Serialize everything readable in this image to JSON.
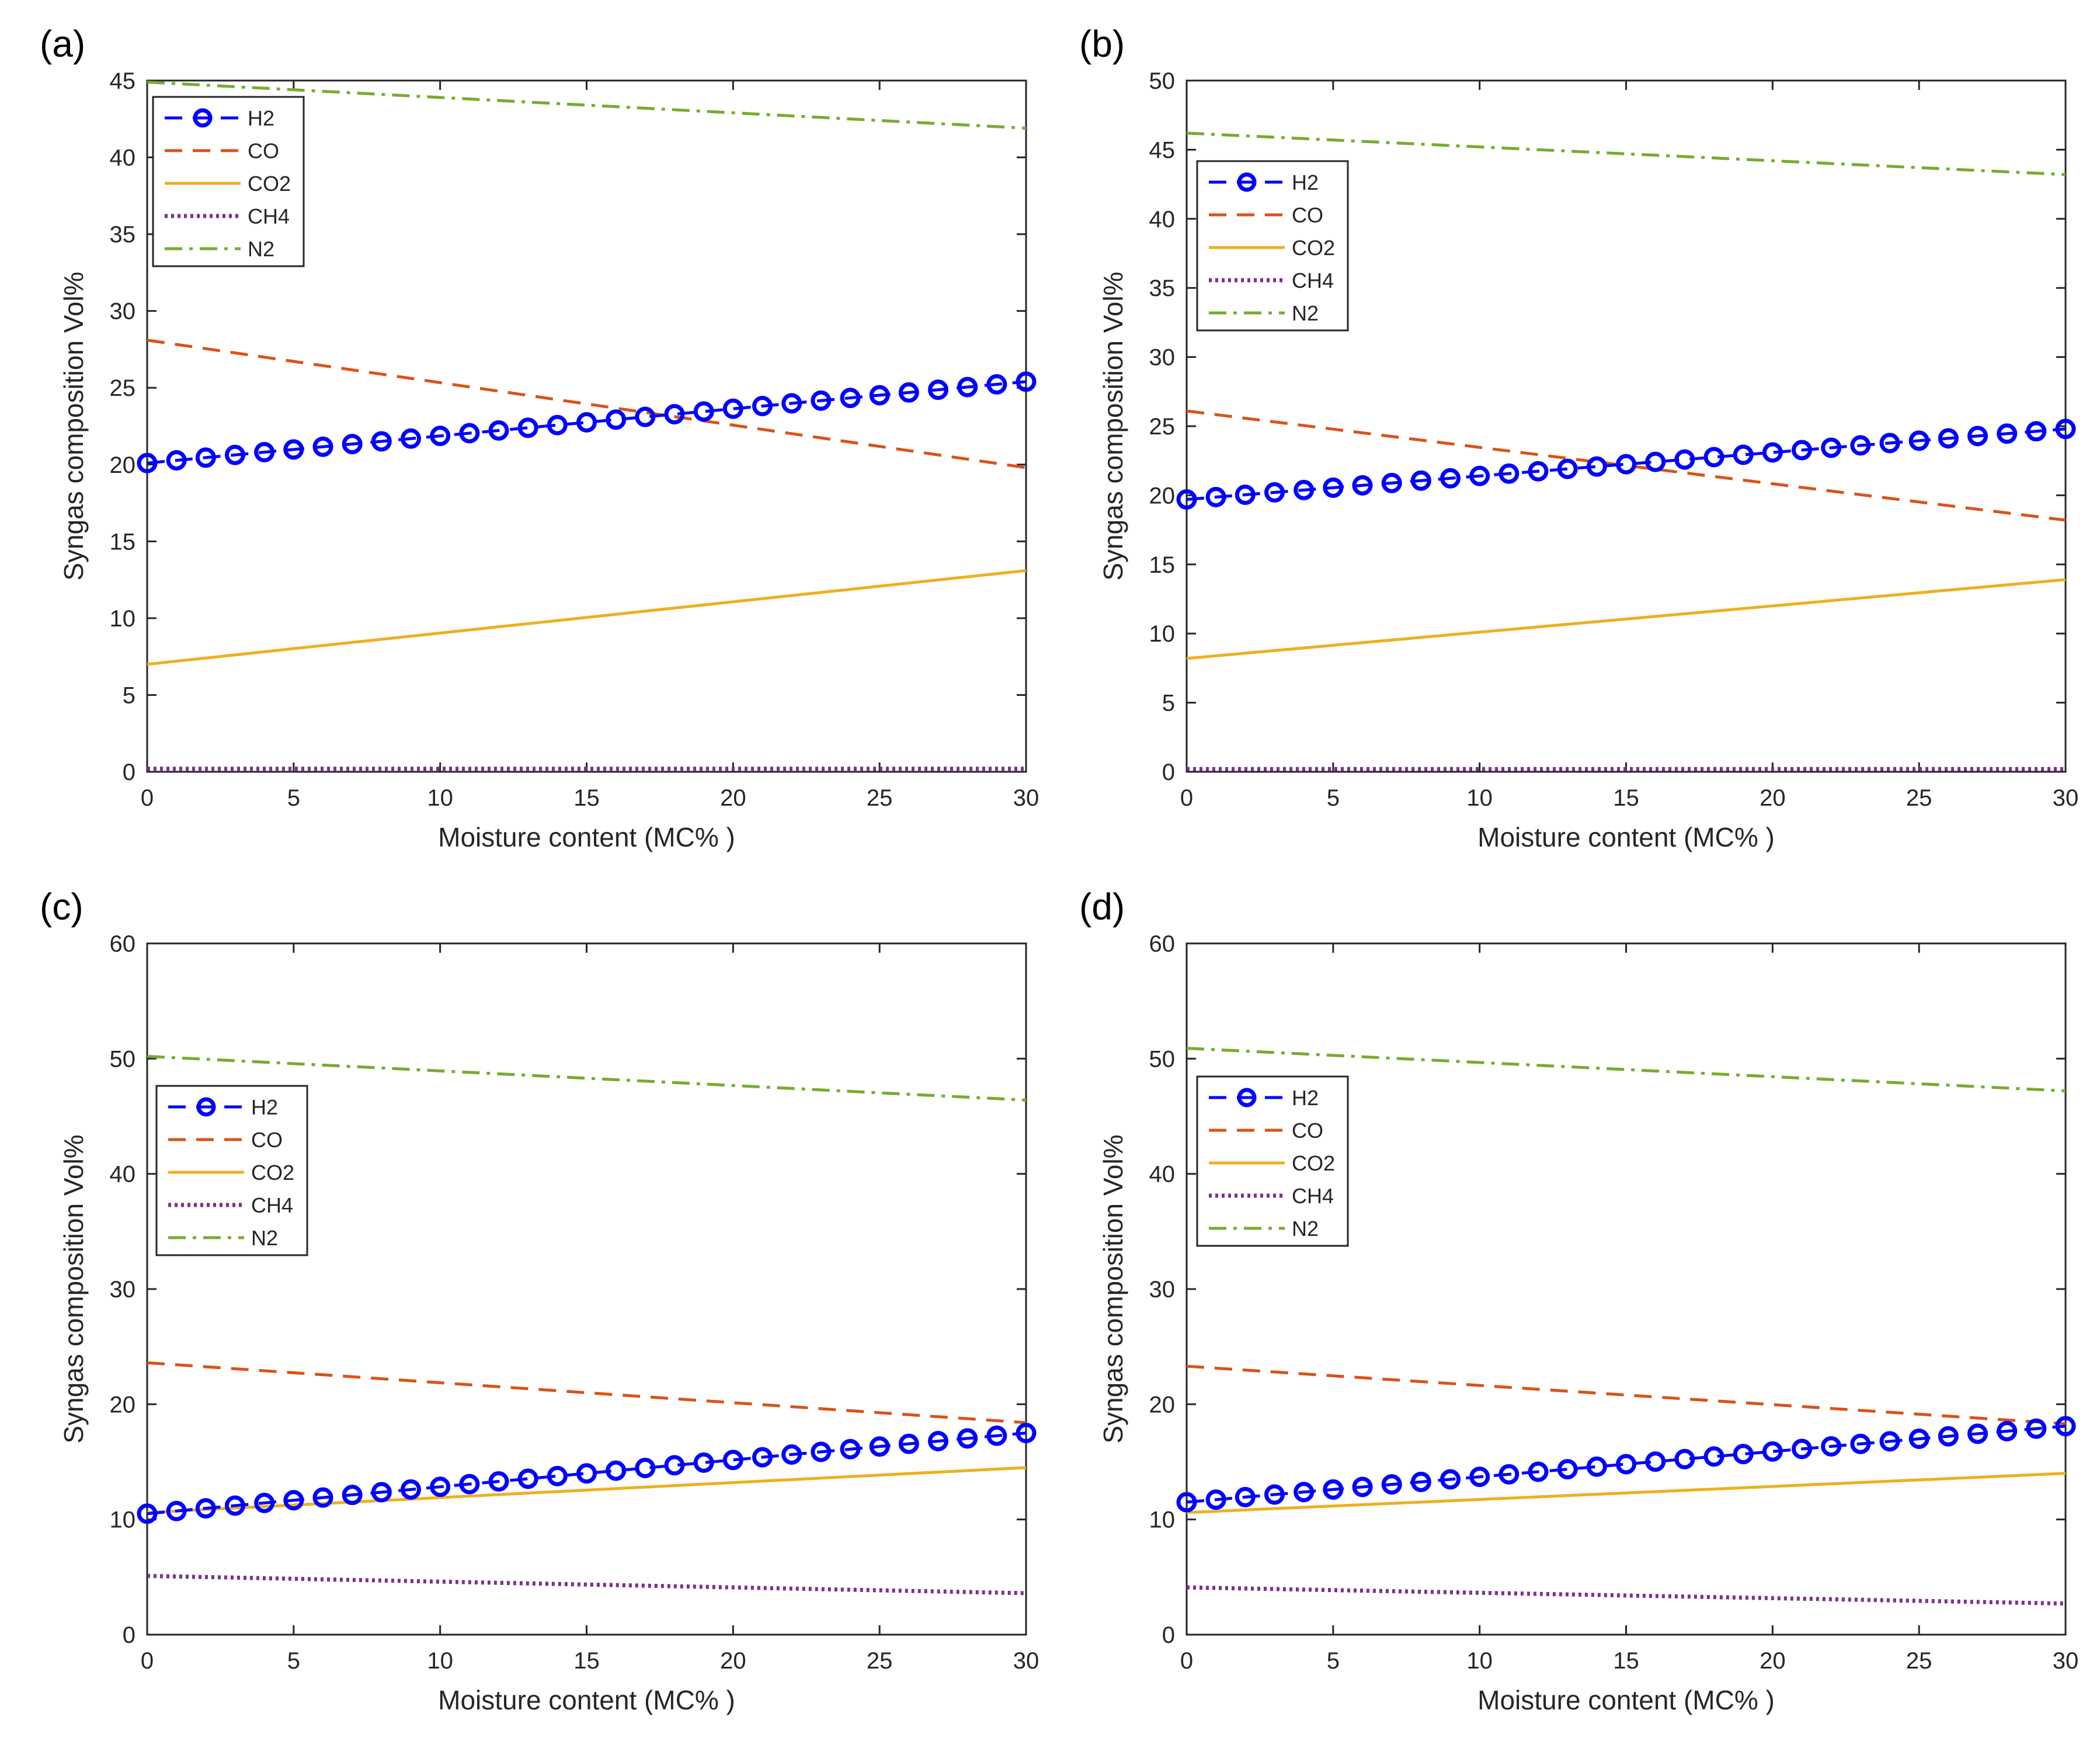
{
  "figure": {
    "panel_labels": [
      "(a)",
      "(b)",
      "(c)",
      "(d)"
    ]
  },
  "colors": {
    "H2": "#0000ff",
    "CO": "#d95319",
    "CO2": "#edb120",
    "CH4": "#7e2f8e",
    "N2": "#77ac30"
  },
  "chart_data": [
    {
      "panel": "(a)",
      "type": "line",
      "xlabel": "Moisture content (MC% )",
      "ylabel": "Syngas composition Vol%",
      "xlim": [
        0,
        30
      ],
      "ylim": [
        0,
        45
      ],
      "xticks": [
        0,
        5,
        10,
        15,
        20,
        25,
        30
      ],
      "yticks": [
        0,
        5,
        10,
        15,
        20,
        25,
        30,
        35,
        40,
        45
      ],
      "legend": {
        "position": "top-left",
        "entries": [
          "H2",
          "CO",
          "CO2",
          "CH4",
          "N2"
        ]
      },
      "series": [
        {
          "name": "H2",
          "style": "dashed-circle",
          "x0": 0,
          "x1": 30,
          "start": 20.1,
          "end": 25.4
        },
        {
          "name": "CO",
          "style": "dashed",
          "x0": 0,
          "x1": 30,
          "start": 28.1,
          "end": 19.8
        },
        {
          "name": "CO2",
          "style": "solid",
          "x0": 0,
          "x1": 30,
          "start": 7.0,
          "end": 13.1
        },
        {
          "name": "CH4",
          "style": "dotted",
          "x0": 0,
          "x1": 30,
          "start": 0.2,
          "end": 0.2
        },
        {
          "name": "N2",
          "style": "dashdot",
          "x0": 0,
          "x1": 30,
          "start": 44.9,
          "end": 41.9
        }
      ]
    },
    {
      "panel": "(b)",
      "type": "line",
      "xlabel": "Moisture content (MC% )",
      "ylabel": "Syngas composition Vol%",
      "xlim": [
        0,
        30
      ],
      "ylim": [
        0,
        50
      ],
      "xticks": [
        0,
        5,
        10,
        15,
        20,
        25,
        30
      ],
      "yticks": [
        0,
        5,
        10,
        15,
        20,
        25,
        30,
        35,
        40,
        45,
        50
      ],
      "legend": {
        "position": "top-left",
        "entries": [
          "H2",
          "CO",
          "CO2",
          "CH4",
          "N2"
        ]
      },
      "series": [
        {
          "name": "H2",
          "style": "dashed-circle",
          "x0": 0,
          "x1": 30,
          "start": 19.7,
          "end": 24.8
        },
        {
          "name": "CO",
          "style": "dashed",
          "x0": 0,
          "x1": 30,
          "start": 26.1,
          "end": 18.2
        },
        {
          "name": "CO2",
          "style": "solid",
          "x0": 0,
          "x1": 30,
          "start": 8.2,
          "end": 13.9
        },
        {
          "name": "CH4",
          "style": "dotted",
          "x0": 0,
          "x1": 30,
          "start": 0.2,
          "end": 0.2
        },
        {
          "name": "N2",
          "style": "dashdot",
          "x0": 0,
          "x1": 30,
          "start": 46.2,
          "end": 43.2
        }
      ]
    },
    {
      "panel": "(c)",
      "type": "line",
      "xlabel": "Moisture content (MC% )",
      "ylabel": "Syngas composition Vol%",
      "xlim": [
        0,
        30
      ],
      "ylim": [
        0,
        60
      ],
      "xticks": [
        0,
        5,
        10,
        15,
        20,
        25,
        30
      ],
      "yticks": [
        0,
        10,
        20,
        30,
        40,
        50,
        60
      ],
      "legend": {
        "position": "center-left",
        "entries": [
          "H2",
          "CO",
          "CO2",
          "CH4",
          "N2"
        ]
      },
      "series": [
        {
          "name": "H2",
          "style": "dashed-circle",
          "x0": 0,
          "x1": 30,
          "start": 10.5,
          "end": 17.5
        },
        {
          "name": "CO",
          "style": "dashed",
          "x0": 0,
          "x1": 30,
          "start": 23.6,
          "end": 18.4
        },
        {
          "name": "CO2",
          "style": "solid",
          "x0": 0,
          "x1": 30,
          "start": 10.6,
          "end": 14.5
        },
        {
          "name": "CH4",
          "style": "dotted",
          "x0": 0,
          "x1": 30,
          "start": 5.1,
          "end": 3.6
        },
        {
          "name": "N2",
          "style": "dashdot",
          "x0": 0,
          "x1": 30,
          "start": 50.2,
          "end": 46.4
        }
      ]
    },
    {
      "panel": "(d)",
      "type": "line",
      "xlabel": "Moisture content (MC% )",
      "ylabel": "Syngas composition Vol%",
      "xlim": [
        0,
        30
      ],
      "ylim": [
        0,
        60
      ],
      "xticks": [
        0,
        5,
        10,
        15,
        20,
        25,
        30
      ],
      "yticks": [
        0,
        10,
        20,
        30,
        40,
        50,
        60
      ],
      "legend": {
        "position": "top-left",
        "entries": [
          "H2",
          "CO",
          "CO2",
          "CH4",
          "N2"
        ]
      },
      "series": [
        {
          "name": "H2",
          "style": "dashed-circle",
          "x0": 0,
          "x1": 30,
          "start": 11.5,
          "end": 18.1
        },
        {
          "name": "CO",
          "style": "dashed",
          "x0": 0,
          "x1": 30,
          "start": 23.3,
          "end": 18.3
        },
        {
          "name": "CO2",
          "style": "solid",
          "x0": 0,
          "x1": 30,
          "start": 10.6,
          "end": 14.0
        },
        {
          "name": "CH4",
          "style": "dotted",
          "x0": 0,
          "x1": 30,
          "start": 4.1,
          "end": 2.7
        },
        {
          "name": "N2",
          "style": "dashdot",
          "x0": 0,
          "x1": 30,
          "start": 50.9,
          "end": 47.2
        }
      ]
    }
  ]
}
